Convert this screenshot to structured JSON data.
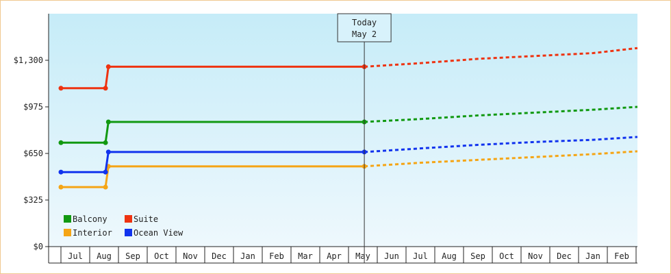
{
  "chart_data": {
    "type": "line",
    "title": "",
    "xlabel": "",
    "ylabel": "",
    "ylim": [
      0,
      1625
    ],
    "y_ticks": [
      {
        "value": 0,
        "label": "$0"
      },
      {
        "value": 325,
        "label": "$325"
      },
      {
        "value": 650,
        "label": "$650"
      },
      {
        "value": 975,
        "label": "$975"
      },
      {
        "value": 1300,
        "label": "$1,300"
      }
    ],
    "x_ticks": [
      "Jul",
      "Aug",
      "Sep",
      "Oct",
      "Nov",
      "Dec",
      "Jan",
      "Feb",
      "Mar",
      "Apr",
      "May",
      "Jun",
      "Jul",
      "Aug",
      "Sep",
      "Oct",
      "Nov",
      "Dec",
      "Jan",
      "Feb"
    ],
    "today": {
      "line1": "Today",
      "line2": "May 2",
      "x": 10.05
    },
    "grid": false,
    "legend": "bottom-left",
    "series": [
      {
        "name": "Balcony",
        "color": "#119911",
        "points": [
          [
            -0.5,
            725
          ],
          [
            1.05,
            725
          ],
          [
            1.15,
            870
          ],
          [
            10.05,
            870
          ]
        ],
        "forecast": [
          [
            10.05,
            870
          ],
          [
            12,
            890
          ],
          [
            14,
            915
          ],
          [
            16,
            935
          ],
          [
            18,
            955
          ],
          [
            20.5,
            975
          ]
        ]
      },
      {
        "name": "Suite",
        "color": "#ee3311",
        "points": [
          [
            -0.5,
            1105
          ],
          [
            1.05,
            1105
          ],
          [
            1.15,
            1255
          ],
          [
            10.05,
            1255
          ]
        ],
        "forecast": [
          [
            10.05,
            1255
          ],
          [
            12,
            1280
          ],
          [
            14,
            1310
          ],
          [
            16,
            1330
          ],
          [
            18,
            1350
          ],
          [
            20.5,
            1385
          ]
        ]
      },
      {
        "name": "Interior",
        "color": "#f5a515",
        "points": [
          [
            -0.5,
            415
          ],
          [
            1.05,
            415
          ],
          [
            1.15,
            560
          ],
          [
            10.05,
            560
          ]
        ],
        "forecast": [
          [
            10.05,
            560
          ],
          [
            12,
            585
          ],
          [
            14,
            605
          ],
          [
            16,
            625
          ],
          [
            18,
            645
          ],
          [
            20.5,
            665
          ]
        ]
      },
      {
        "name": "Ocean View",
        "color": "#1133ee",
        "points": [
          [
            -0.5,
            520
          ],
          [
            1.05,
            520
          ],
          [
            1.15,
            660
          ],
          [
            10.05,
            660
          ]
        ],
        "forecast": [
          [
            10.05,
            660
          ],
          [
            12,
            685
          ],
          [
            14,
            710
          ],
          [
            16,
            730
          ],
          [
            18,
            745
          ],
          [
            20.5,
            765
          ]
        ]
      }
    ]
  }
}
